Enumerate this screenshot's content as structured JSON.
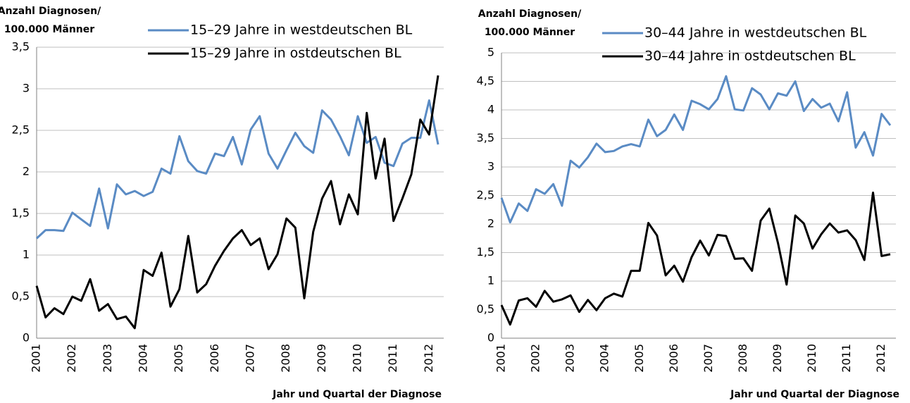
{
  "chart_data": [
    {
      "type": "line",
      "ylabel": [
        "Anzahl Diagnosen/",
        "100.000 Männer"
      ],
      "xlabel": "Jahr und Quartal der Diagnose",
      "categories": [
        "2001",
        null,
        null,
        null,
        "2002",
        null,
        null,
        null,
        "2003",
        null,
        null,
        null,
        "2004",
        null,
        null,
        null,
        "2005",
        null,
        null,
        null,
        "2006",
        null,
        null,
        null,
        "2007",
        null,
        null,
        null,
        "2008",
        null,
        null,
        null,
        "2009",
        null,
        null,
        null,
        "2010",
        null,
        null,
        null,
        "2011",
        null,
        null,
        null,
        "2012",
        null
      ],
      "ylim": [
        0,
        3.5
      ],
      "yticks": [
        0,
        {
          "value": 0.5,
          "label": "0,5"
        },
        1,
        {
          "value": 1.5,
          "label": "1,5"
        },
        2,
        {
          "value": 2.5,
          "label": "2,5"
        },
        3,
        {
          "value": 3.5,
          "label": "3,5"
        }
      ],
      "grid": true,
      "series": [
        {
          "name": "15–29 Jahre in westdeutschen BL",
          "color": "#5a8bc4",
          "values": [
            1.2,
            1.3,
            1.3,
            1.29,
            1.51,
            1.43,
            1.35,
            1.8,
            1.32,
            1.85,
            1.73,
            1.77,
            1.71,
            1.76,
            2.04,
            1.98,
            2.43,
            2.13,
            2.01,
            1.98,
            2.22,
            2.19,
            2.42,
            2.09,
            2.51,
            2.67,
            2.22,
            2.04,
            2.26,
            2.47,
            2.31,
            2.23,
            2.74,
            2.63,
            2.43,
            2.2,
            2.67,
            2.35,
            2.42,
            2.11,
            2.07,
            2.34,
            2.41,
            2.41,
            2.86,
            2.33
          ]
        },
        {
          "name": "15–29 Jahre in ostdeutschen BL",
          "color": "#000000",
          "values": [
            0.63,
            0.25,
            0.36,
            0.29,
            0.5,
            0.45,
            0.71,
            0.33,
            0.41,
            0.23,
            0.26,
            0.12,
            0.82,
            0.75,
            1.03,
            0.38,
            0.59,
            1.23,
            0.55,
            0.65,
            0.87,
            1.05,
            1.2,
            1.3,
            1.12,
            1.2,
            0.83,
            1.01,
            1.44,
            1.33,
            0.48,
            1.28,
            1.68,
            1.89,
            1.37,
            1.73,
            1.49,
            2.71,
            1.92,
            2.4,
            1.41,
            1.68,
            1.97,
            2.63,
            2.45,
            3.16
          ]
        }
      ]
    },
    {
      "type": "line",
      "ylabel": [
        "Anzahl Diagnosen/",
        "100.000 Männer"
      ],
      "xlabel": "Jahr und Quartal der Diagnose",
      "categories": [
        "2001",
        null,
        null,
        null,
        "2002",
        null,
        null,
        null,
        "2003",
        null,
        null,
        null,
        "2004",
        null,
        null,
        null,
        "2005",
        null,
        null,
        null,
        "2006",
        null,
        null,
        null,
        "2007",
        null,
        null,
        null,
        "2008",
        null,
        null,
        null,
        "2009",
        null,
        null,
        null,
        "2010",
        null,
        null,
        null,
        "2011",
        null,
        null,
        null,
        "2012",
        null
      ],
      "ylim": [
        0,
        5
      ],
      "yticks": [
        0,
        {
          "value": 0.5,
          "label": "0,5"
        },
        1,
        {
          "value": 1.5,
          "label": "1,5"
        },
        2,
        {
          "value": 2.5,
          "label": "2,5"
        },
        3,
        {
          "value": 3.5,
          "label": "3,5"
        },
        4,
        {
          "value": 4.5,
          "label": "4,5"
        },
        5
      ],
      "grid": true,
      "series": [
        {
          "name": "30–44 Jahre in westdeutschen BL",
          "color": "#5a8bc4",
          "values": [
            2.46,
            2.03,
            2.36,
            2.23,
            2.61,
            2.53,
            2.7,
            2.32,
            3.11,
            2.99,
            3.17,
            3.41,
            3.26,
            3.28,
            3.36,
            3.4,
            3.36,
            3.83,
            3.54,
            3.65,
            3.92,
            3.65,
            4.16,
            4.1,
            4.01,
            4.19,
            4.59,
            4.01,
            3.99,
            4.38,
            4.27,
            4.01,
            4.29,
            4.25,
            4.5,
            3.98,
            4.19,
            4.04,
            4.11,
            3.8,
            4.31,
            3.34,
            3.61,
            3.2,
            3.93,
            3.73
          ]
        },
        {
          "name": "30–44 Jahre in ostdeutschen BL",
          "color": "#000000",
          "values": [
            0.58,
            0.24,
            0.66,
            0.7,
            0.55,
            0.83,
            0.64,
            0.68,
            0.75,
            0.46,
            0.67,
            0.49,
            0.7,
            0.78,
            0.73,
            1.18,
            1.18,
            2.02,
            1.8,
            1.1,
            1.27,
            0.99,
            1.42,
            1.71,
            1.45,
            1.81,
            1.79,
            1.39,
            1.4,
            1.18,
            2.06,
            2.27,
            1.67,
            0.94,
            2.15,
            2.01,
            1.57,
            1.82,
            2.01,
            1.85,
            1.89,
            1.72,
            1.37,
            2.55,
            1.44,
            1.47
          ]
        }
      ]
    }
  ]
}
